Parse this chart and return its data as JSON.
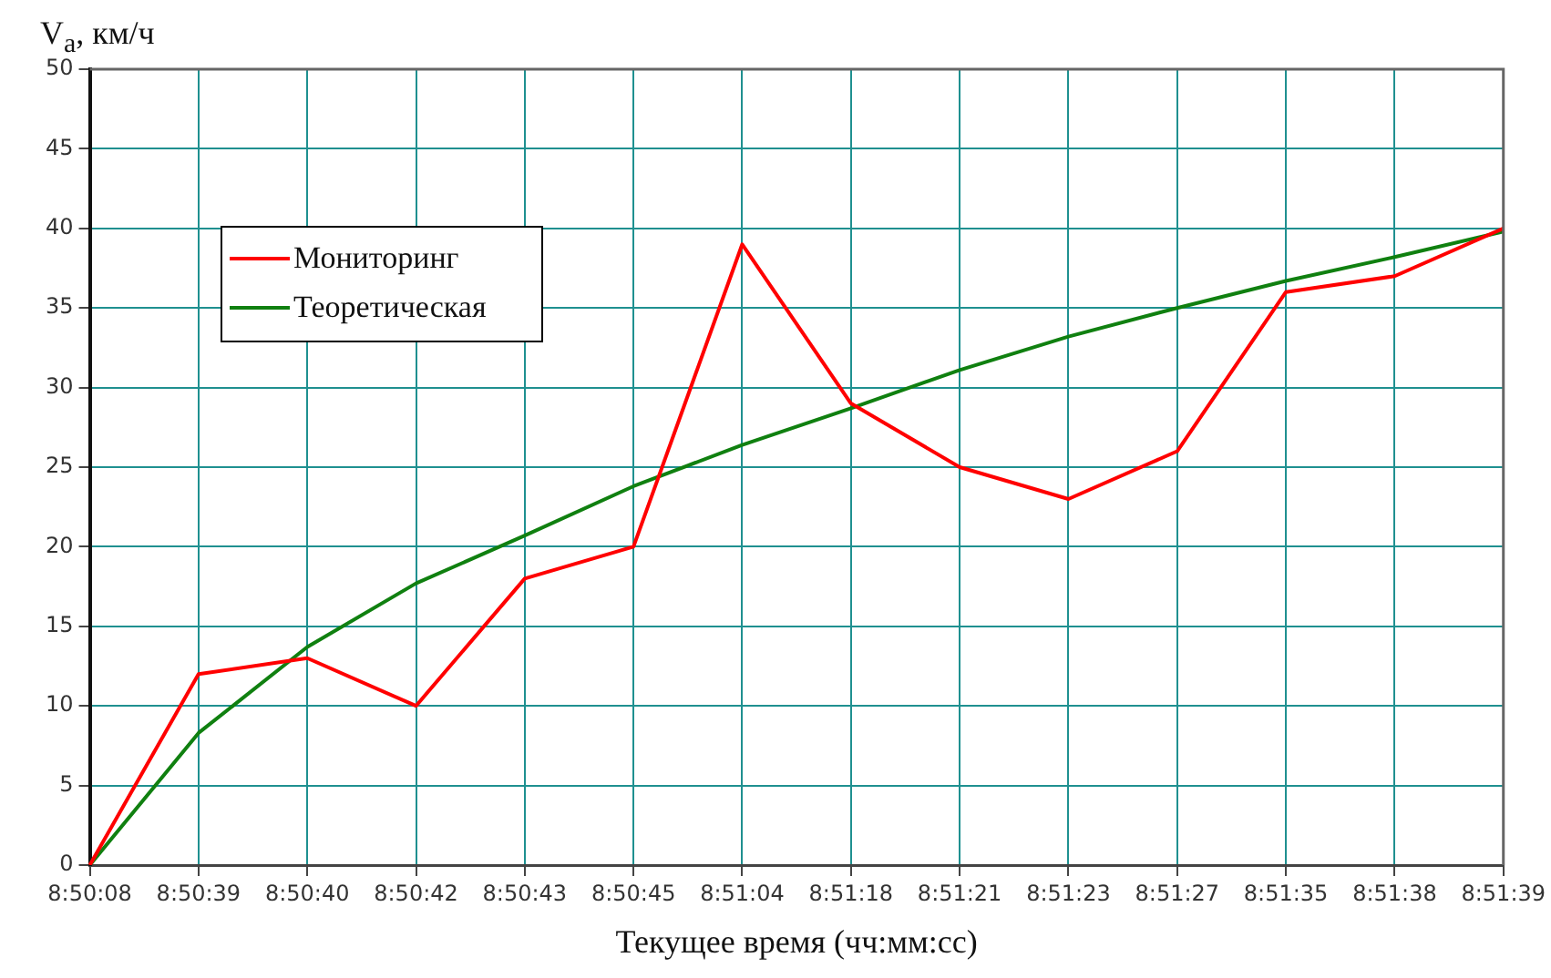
{
  "chart_data": {
    "type": "line",
    "ylabel": "V$_{a}$, км/ч",
    "xlabel": "Текущее время (чч:мм:сс)",
    "categories": [
      "8:50:08",
      "8:50:39",
      "8:50:40",
      "8:50:42",
      "8:50:43",
      "8:50:45",
      "8:51:04",
      "8:51:18",
      "8:51:21",
      "8:51:23",
      "8:51:27",
      "8:51:35",
      "8:51:38",
      "8:51:39"
    ],
    "series": [
      {
        "name": "Мониторинг",
        "color": "#ff0000",
        "values": [
          0,
          12,
          13,
          10,
          18,
          20,
          39,
          29,
          25,
          23,
          26,
          36,
          37,
          40
        ]
      },
      {
        "name": "Теоретическая",
        "color": "#108010",
        "values": [
          0,
          8.3,
          13.7,
          17.7,
          20.7,
          23.8,
          26.4,
          28.7,
          31.1,
          33.2,
          35,
          36.7,
          38.2,
          39.8
        ]
      }
    ],
    "ylim": [
      0,
      50
    ],
    "yticks": [
      0,
      5,
      10,
      15,
      20,
      25,
      30,
      35,
      40,
      45,
      50
    ],
    "grid": true,
    "legend": "top left",
    "marker": "none",
    "line_style": "solid"
  }
}
